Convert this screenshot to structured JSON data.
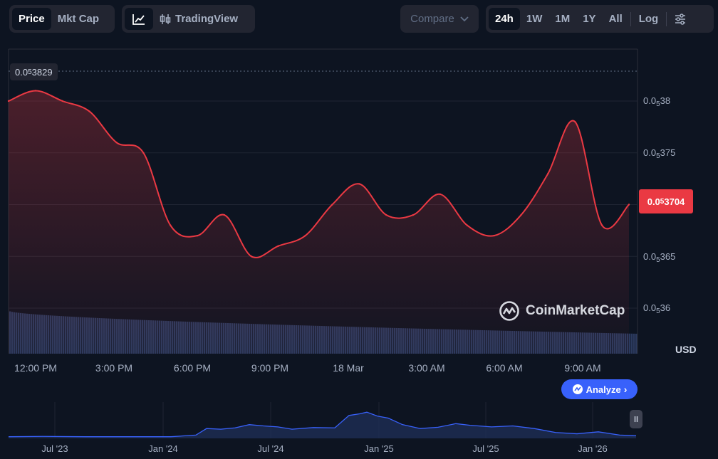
{
  "toolbar": {
    "type_tabs": [
      {
        "label": "Price",
        "active": true
      },
      {
        "label": "Mkt Cap",
        "active": false
      }
    ],
    "tradingview_label": "TradingView",
    "compare_label": "Compare",
    "ranges": [
      {
        "label": "24h",
        "active": true
      },
      {
        "label": "1W",
        "active": false
      },
      {
        "label": "1M",
        "active": false
      },
      {
        "label": "1Y",
        "active": false
      },
      {
        "label": "All",
        "active": false
      }
    ],
    "log_label": "Log"
  },
  "chart": {
    "y_axis_ticks": [
      {
        "prefix": "0.0",
        "sub": "5",
        "suffix": "38"
      },
      {
        "prefix": "0.0",
        "sub": "5",
        "suffix": "375"
      },
      {
        "prefix": "0.0",
        "sub": "5",
        "suffix": "365"
      },
      {
        "prefix": "0.0",
        "sub": "5",
        "suffix": "36"
      }
    ],
    "current_price": {
      "prefix": "0.0",
      "sub": "5",
      "suffix": "3704"
    },
    "max_price": {
      "prefix": "0.0",
      "sub": "5",
      "suffix": "3829"
    },
    "x_axis_labels": [
      "12:00 PM",
      "3:00 PM",
      "6:00 PM",
      "9:00 PM",
      "18 Mar",
      "3:00 AM",
      "6:00 AM",
      "9:00 AM"
    ],
    "currency": "USD",
    "watermark": "CoinMarketCap",
    "analyze_label": "Analyze",
    "line_color": "#ea3943",
    "volume_color": "#2b3a5e"
  },
  "navigator": {
    "labels": [
      "Jul '23",
      "Jan '24",
      "Jul '24",
      "Jan '25",
      "Jul '25",
      "Jan '26"
    ],
    "line_color": "#3861fb"
  },
  "chart_data": {
    "type": "line",
    "x": [
      "12:00 PM",
      "1:00 PM",
      "2:00 PM",
      "3:00 PM",
      "4:00 PM",
      "5:00 PM",
      "6:00 PM",
      "7:00 PM",
      "8:00 PM",
      "9:00 PM",
      "10:00 PM",
      "11:00 PM",
      "18 Mar",
      "1:00 AM",
      "2:00 AM",
      "3:00 AM",
      "4:00 AM",
      "5:00 AM",
      "6:00 AM",
      "7:00 AM",
      "8:00 AM",
      "9:00 AM",
      "10:00 AM",
      "11:00 AM"
    ],
    "series": [
      {
        "values": [
          3.8e-06,
          3.81e-06,
          3.8e-06,
          3.79e-06,
          3.76e-06,
          3.75e-06,
          3.68e-06,
          3.67e-06,
          3.69e-06,
          3.65e-06,
          3.66e-06,
          3.67e-06,
          3.7e-06,
          3.72e-06,
          3.69e-06,
          3.69e-06,
          3.71e-06,
          3.68e-06,
          3.67e-06,
          3.69e-06,
          3.73e-06,
          3.78e-06,
          3.68e-06,
          3.7e-06
        ]
      }
    ],
    "ylim": [
      3.59e-06,
      3.84e-06
    ],
    "y_ticks": [
      3.6e-06,
      3.65e-06,
      3.75e-06,
      3.8e-06
    ],
    "max": 3.83e-06,
    "current": 3.7e-06,
    "ylabel": "USD",
    "grid": true
  }
}
